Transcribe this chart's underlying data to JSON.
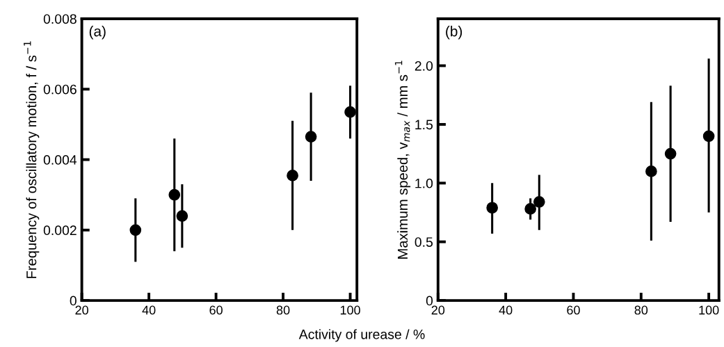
{
  "chart_data": [
    {
      "type": "scatter",
      "xlabel": "Activity of urease / %",
      "ylabel": "Frequency of oscillatory motion, f / s$^{−1}$",
      "annotations": [
        "(a)"
      ],
      "x": [
        36,
        47.6,
        49.9,
        82.8,
        88.3,
        100
      ],
      "series": [
        {
          "color": "#000000",
          "values": [
            0.002,
            0.003,
            0.0024,
            0.00355,
            0.00465,
            0.00535
          ],
          "errors": [
            [
              0.0011,
              0.0029
            ],
            [
              0.0014,
              0.0046
            ],
            [
              0.0015,
              0.0033
            ],
            [
              0.002,
              0.0051
            ],
            [
              0.0034,
              0.0059
            ],
            [
              0.0046,
              0.0061
            ]
          ]
        }
      ],
      "xlim": [
        20,
        102
      ],
      "xticks": [
        20,
        40,
        60,
        80,
        100
      ],
      "ylim": [
        0,
        0.008
      ],
      "yticks": [
        0,
        0.002,
        0.004,
        0.006,
        0.008
      ],
      "grid": false,
      "legend": false,
      "marker": "circle"
    },
    {
      "type": "scatter",
      "ylabel": "Maximum speed, v$_{max}$ / mm s$^{−1}$",
      "annotations": [
        "(b)"
      ],
      "x": [
        36,
        47.3,
        49.9,
        83,
        88.7,
        100
      ],
      "series": [
        {
          "color": "#000000",
          "values": [
            0.79,
            0.78,
            0.84,
            1.1,
            1.25,
            1.4
          ],
          "errors": [
            [
              0.57,
              1.0
            ],
            [
              0.69,
              0.87
            ],
            [
              0.6,
              1.07
            ],
            [
              0.51,
              1.69
            ],
            [
              0.67,
              1.83
            ],
            [
              0.75,
              2.06
            ]
          ]
        }
      ],
      "xlim": [
        20,
        103
      ],
      "xticks": [
        20,
        40,
        60,
        80,
        100
      ],
      "ylim": [
        0,
        2.4
      ],
      "yticks": [
        0,
        {
          "value": 0.5,
          "label": "0.5"
        },
        {
          "value": 1.0,
          "label": "1.0"
        },
        {
          "value": 1.5,
          "label": "1.5"
        },
        {
          "value": 2.0,
          "label": "2.0"
        }
      ],
      "grid": false,
      "legend": false,
      "marker": "circle"
    }
  ]
}
